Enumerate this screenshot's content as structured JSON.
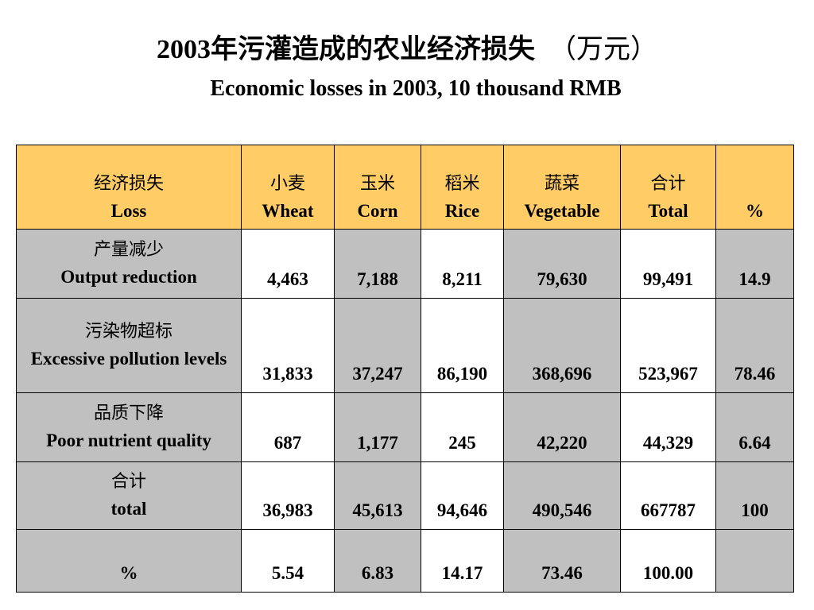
{
  "title": {
    "chinese": "2003年污灌造成的农业经济损失",
    "unit": "（万元）",
    "english": "Economic losses in 2003, 10 thousand RMB"
  },
  "table": {
    "headers": [
      {
        "cn": "经济损失",
        "en": "Loss"
      },
      {
        "cn": "小麦",
        "en": "Wheat"
      },
      {
        "cn": "玉米",
        "en": "Corn"
      },
      {
        "cn": "稻米",
        "en": "Rice"
      },
      {
        "cn": "蔬菜",
        "en": "Vegetable"
      },
      {
        "cn": "合计",
        "en": "Total"
      },
      {
        "cn": "",
        "en": "%"
      }
    ],
    "rows": [
      {
        "cn": "产量减少",
        "en": "Output reduction",
        "values": [
          "4,463",
          "7,188",
          "8,211",
          "79,630",
          "99,491",
          "14.9"
        ]
      },
      {
        "cn": "污染物超标",
        "en": "Excessive pollution levels",
        "values": [
          "31,833",
          "37,247",
          "86,190",
          "368,696",
          "523,967",
          "78.46"
        ]
      },
      {
        "cn": "品质下降",
        "en": "Poor nutrient quality",
        "values": [
          "687",
          "1,177",
          "245",
          "42,220",
          "44,329",
          "6.64"
        ]
      },
      {
        "cn": "合计",
        "en": "total",
        "values": [
          "36,983",
          "45,613",
          "94,646",
          "490,546",
          "667787",
          "100"
        ]
      },
      {
        "cn": "",
        "en": "%",
        "values": [
          "5.54",
          "6.83",
          "14.17",
          "73.46",
          "100.00",
          ""
        ]
      }
    ]
  },
  "colors": {
    "header_background": "#ffcc66",
    "gray_cell": "#c0c0c0",
    "white_cell": "#ffffff"
  }
}
